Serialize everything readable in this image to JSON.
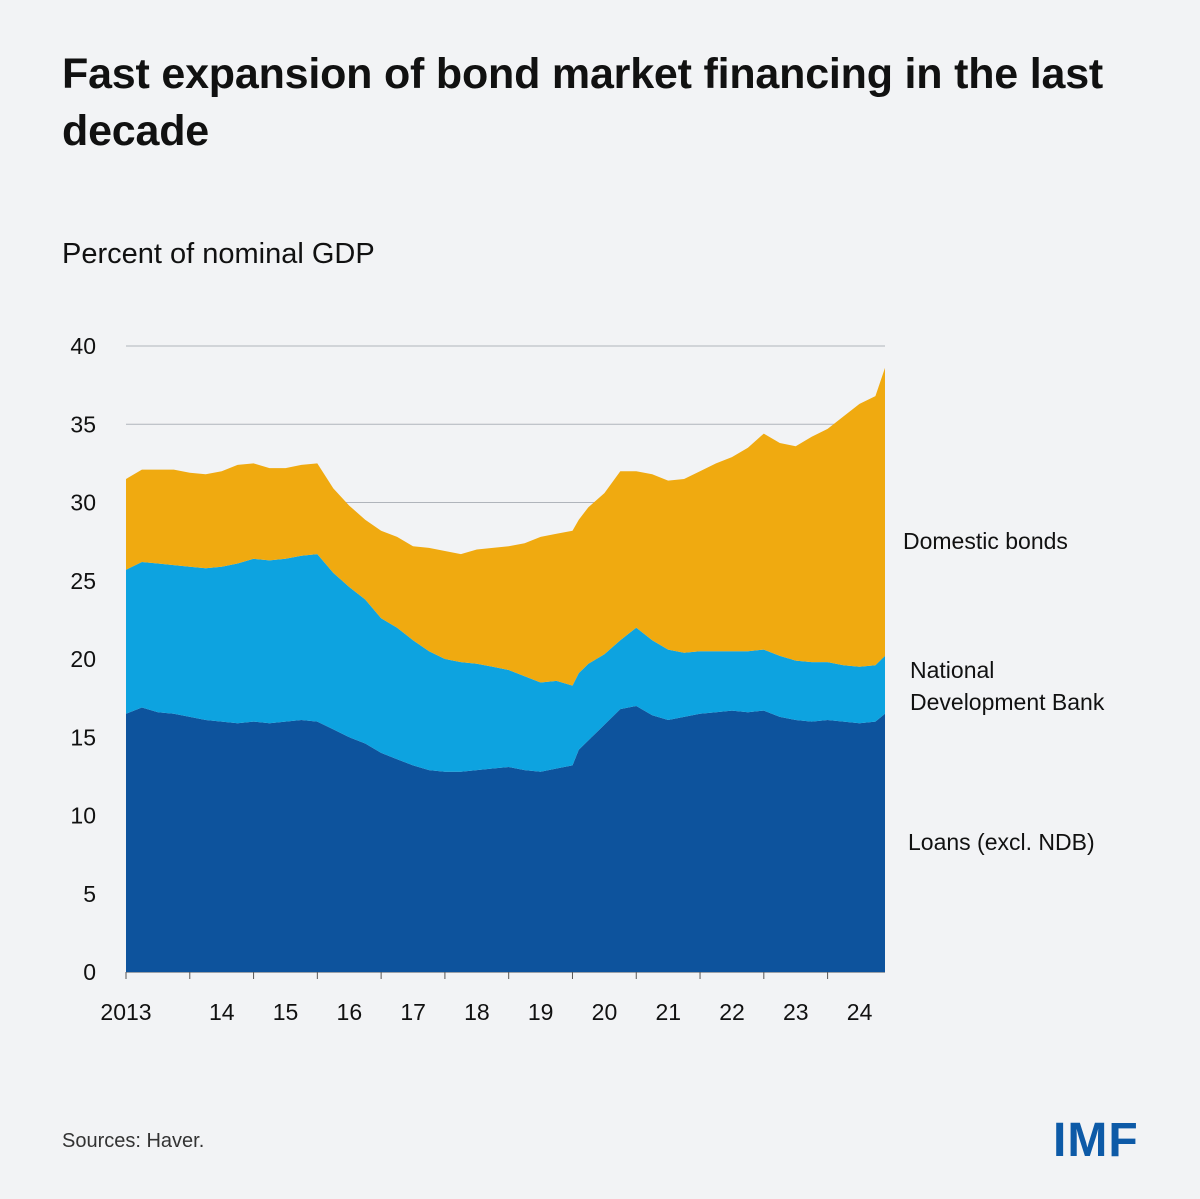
{
  "title": "Fast expansion of bond market financing in the last decade",
  "subtitle": "Percent of nominal GDP",
  "source": "Sources: Haver.",
  "logo": "IMF",
  "colors": {
    "loans": "#0d539d",
    "ndb": "#0da3e0",
    "bonds": "#f0aa10",
    "grid": "#b0b4bb",
    "background": "#f2f3f5"
  },
  "chart_data": {
    "type": "area",
    "stacked": true,
    "ylim": [
      0,
      40
    ],
    "yticks": [
      0,
      5,
      10,
      15,
      20,
      25,
      30,
      35,
      40
    ],
    "xlim": [
      2013.0,
      2025.0
    ],
    "xtick_labels": [
      "2013",
      "14",
      "15",
      "16",
      "17",
      "18",
      "19",
      "20",
      "21",
      "22",
      "23",
      "24"
    ],
    "xtick_values": [
      2013,
      2014,
      2015,
      2016,
      2017,
      2018,
      2019,
      2020,
      2021,
      2022,
      2023,
      2024
    ],
    "x": [
      2013.0,
      2013.25,
      2013.5,
      2013.75,
      2014.0,
      2014.25,
      2014.5,
      2014.75,
      2015.0,
      2015.25,
      2015.5,
      2015.75,
      2016.0,
      2016.25,
      2016.5,
      2016.75,
      2017.0,
      2017.25,
      2017.5,
      2017.75,
      2018.0,
      2018.25,
      2018.5,
      2018.75,
      2019.0,
      2019.25,
      2019.5,
      2019.75,
      2020.0,
      2020.1,
      2020.25,
      2020.5,
      2020.75,
      2021.0,
      2021.25,
      2021.5,
      2021.75,
      2022.0,
      2022.25,
      2022.5,
      2022.75,
      2023.0,
      2023.25,
      2023.5,
      2023.75,
      2024.0,
      2024.25,
      2024.5,
      2024.75,
      2024.9
    ],
    "series": [
      {
        "name": "Loans (excl. NDB)",
        "color": "#0d539d",
        "values": [
          16.5,
          16.9,
          16.6,
          16.5,
          16.3,
          16.1,
          16.0,
          15.9,
          16.0,
          15.9,
          16.0,
          16.1,
          16.0,
          15.5,
          15.0,
          14.6,
          14.0,
          13.6,
          13.2,
          12.9,
          12.8,
          12.8,
          12.9,
          13.0,
          13.1,
          12.9,
          12.8,
          13.0,
          13.2,
          14.2,
          14.8,
          15.8,
          16.8,
          17.0,
          16.4,
          16.1,
          16.3,
          16.5,
          16.6,
          16.7,
          16.6,
          16.7,
          16.3,
          16.1,
          16.0,
          16.1,
          16.0,
          15.9,
          16.0,
          16.5
        ]
      },
      {
        "name": "National Development Bank",
        "color": "#0da3e0",
        "values": [
          9.2,
          9.3,
          9.5,
          9.5,
          9.6,
          9.7,
          9.9,
          10.2,
          10.4,
          10.4,
          10.4,
          10.5,
          10.7,
          10.0,
          9.6,
          9.2,
          8.6,
          8.4,
          8.0,
          7.6,
          7.2,
          7.0,
          6.8,
          6.5,
          6.2,
          6.0,
          5.7,
          5.6,
          5.1,
          4.9,
          4.9,
          4.5,
          4.4,
          5.0,
          4.8,
          4.5,
          4.1,
          4.0,
          3.9,
          3.8,
          3.9,
          3.9,
          3.9,
          3.8,
          3.8,
          3.7,
          3.6,
          3.6,
          3.6,
          3.7
        ]
      },
      {
        "name": "Domestic bonds",
        "color": "#f0aa10",
        "values": [
          5.8,
          5.9,
          6.0,
          6.1,
          6.0,
          6.0,
          6.1,
          6.3,
          6.1,
          5.9,
          5.8,
          5.8,
          5.8,
          5.4,
          5.2,
          5.1,
          5.6,
          5.8,
          6.0,
          6.6,
          6.9,
          6.9,
          7.3,
          7.6,
          7.9,
          8.5,
          9.3,
          9.4,
          9.9,
          9.8,
          10.0,
          10.3,
          10.8,
          10.0,
          10.6,
          10.8,
          11.1,
          11.5,
          12.0,
          12.4,
          13.0,
          13.8,
          13.6,
          13.7,
          14.4,
          14.9,
          15.9,
          16.8,
          17.2,
          18.4
        ]
      }
    ]
  }
}
